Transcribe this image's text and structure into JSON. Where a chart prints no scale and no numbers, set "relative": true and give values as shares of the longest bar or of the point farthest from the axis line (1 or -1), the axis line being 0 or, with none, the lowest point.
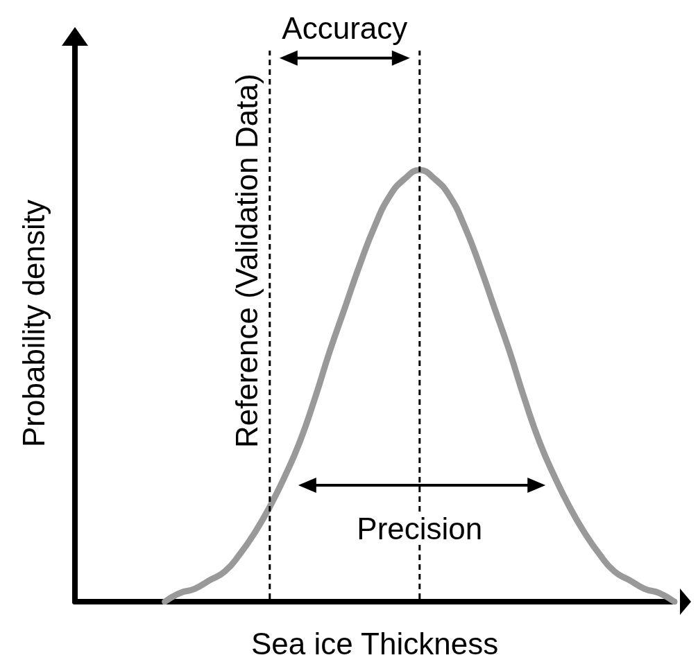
{
  "chart_data": {
    "type": "line",
    "relative": true,
    "xlabel": "Sea ice Thickness",
    "ylabel": "Probability density",
    "categories": [
      null,
      null,
      null,
      null,
      null,
      null,
      null,
      null,
      null,
      null,
      null,
      null,
      null,
      null,
      null,
      null,
      null,
      null,
      null,
      null,
      null,
      null,
      null,
      null,
      null,
      null,
      null,
      null,
      null,
      null,
      null,
      null,
      null,
      null,
      null,
      null,
      null,
      null,
      null,
      null,
      null
    ],
    "series": [
      {
        "color": "#999999",
        "values": [
          null,
          null,
          null,
          null,
          null,
          null,
          0,
          0.02,
          0.03,
          0.05,
          0.07,
          0.11,
          0.16,
          0.22,
          0.29,
          0.37,
          0.47,
          0.58,
          0.68,
          0.78,
          0.87,
          0.94,
          0.98,
          1,
          0.98,
          0.94,
          0.87,
          0.78,
          0.68,
          0.58,
          0.47,
          0.37,
          0.29,
          0.22,
          0.16,
          0.11,
          0.07,
          0.05,
          0.03,
          0.02,
          0
        ]
      }
    ],
    "annotations": [
      "Accuracy",
      "Precision",
      "Reference (Validation Data)"
    ],
    "marker": "none",
    "line_style": "solid"
  }
}
